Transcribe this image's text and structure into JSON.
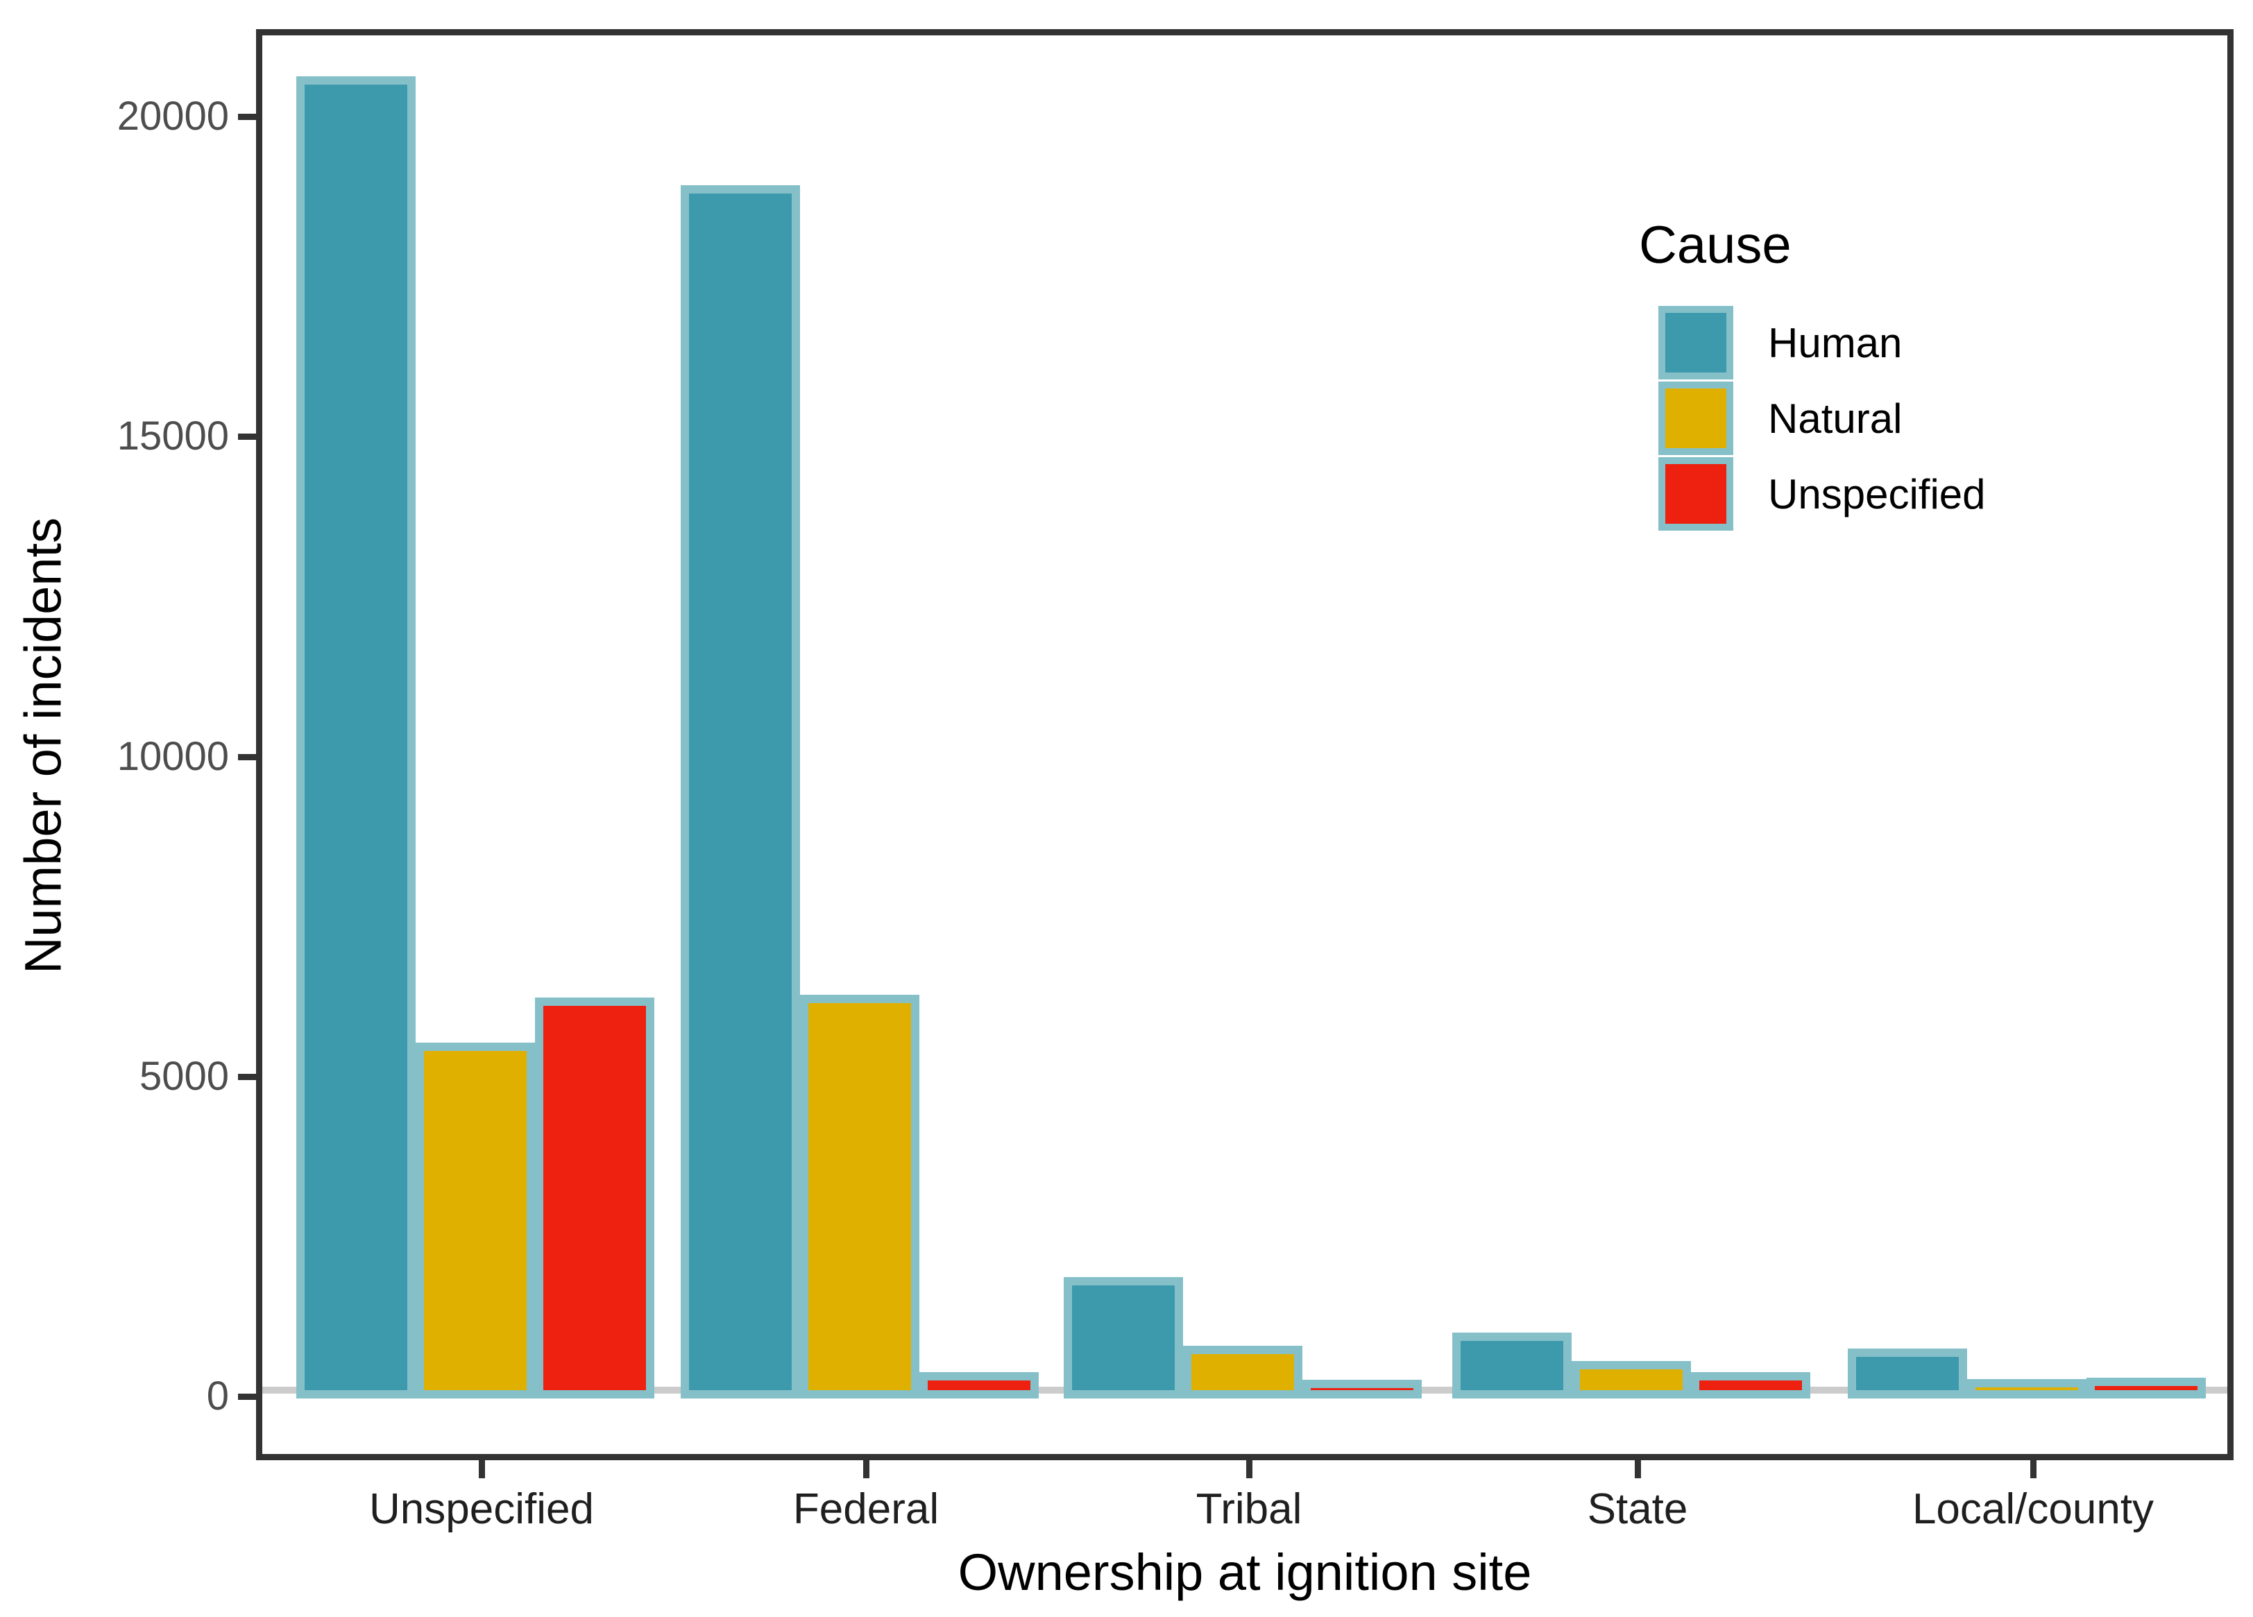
{
  "chart_data": {
    "type": "bar",
    "variant": "grouped",
    "title": "",
    "xlabel": "Ownership at ignition site",
    "ylabel": "Number of incidents",
    "categories": [
      "Unspecified",
      "Federal",
      "Tribal",
      "State",
      "Local/county"
    ],
    "series": [
      {
        "name": "Human",
        "color": "#3D99AC",
        "values": [
          20400,
          18700,
          1640,
          770,
          520
        ]
      },
      {
        "name": "Natural",
        "color": "#E0B000",
        "values": [
          5300,
          6050,
          560,
          330,
          40
        ]
      },
      {
        "name": "Unspecified",
        "color": "#EE2010",
        "values": [
          6000,
          150,
          30,
          150,
          60
        ]
      }
    ],
    "y_ticks": [
      0,
      5000,
      10000,
      15000,
      20000
    ],
    "ylim": [
      0,
      21200
    ],
    "grid": "zero-baseline-only",
    "legend_position": "inside-top-right",
    "colors": {
      "bar_border": "#85C0C9",
      "panel_border": "#333333",
      "zero_line": "#CCCCCC",
      "y_tick_text": "#4d4d4d",
      "x_tick_text": "#1f1f1f",
      "title_text": "#000000"
    }
  },
  "legend": {
    "title": "Cause",
    "items": [
      {
        "label": "Human",
        "color": "#3D99AC"
      },
      {
        "label": "Natural",
        "color": "#E0B000"
      },
      {
        "label": "Unspecified",
        "color": "#EE2010"
      }
    ]
  }
}
